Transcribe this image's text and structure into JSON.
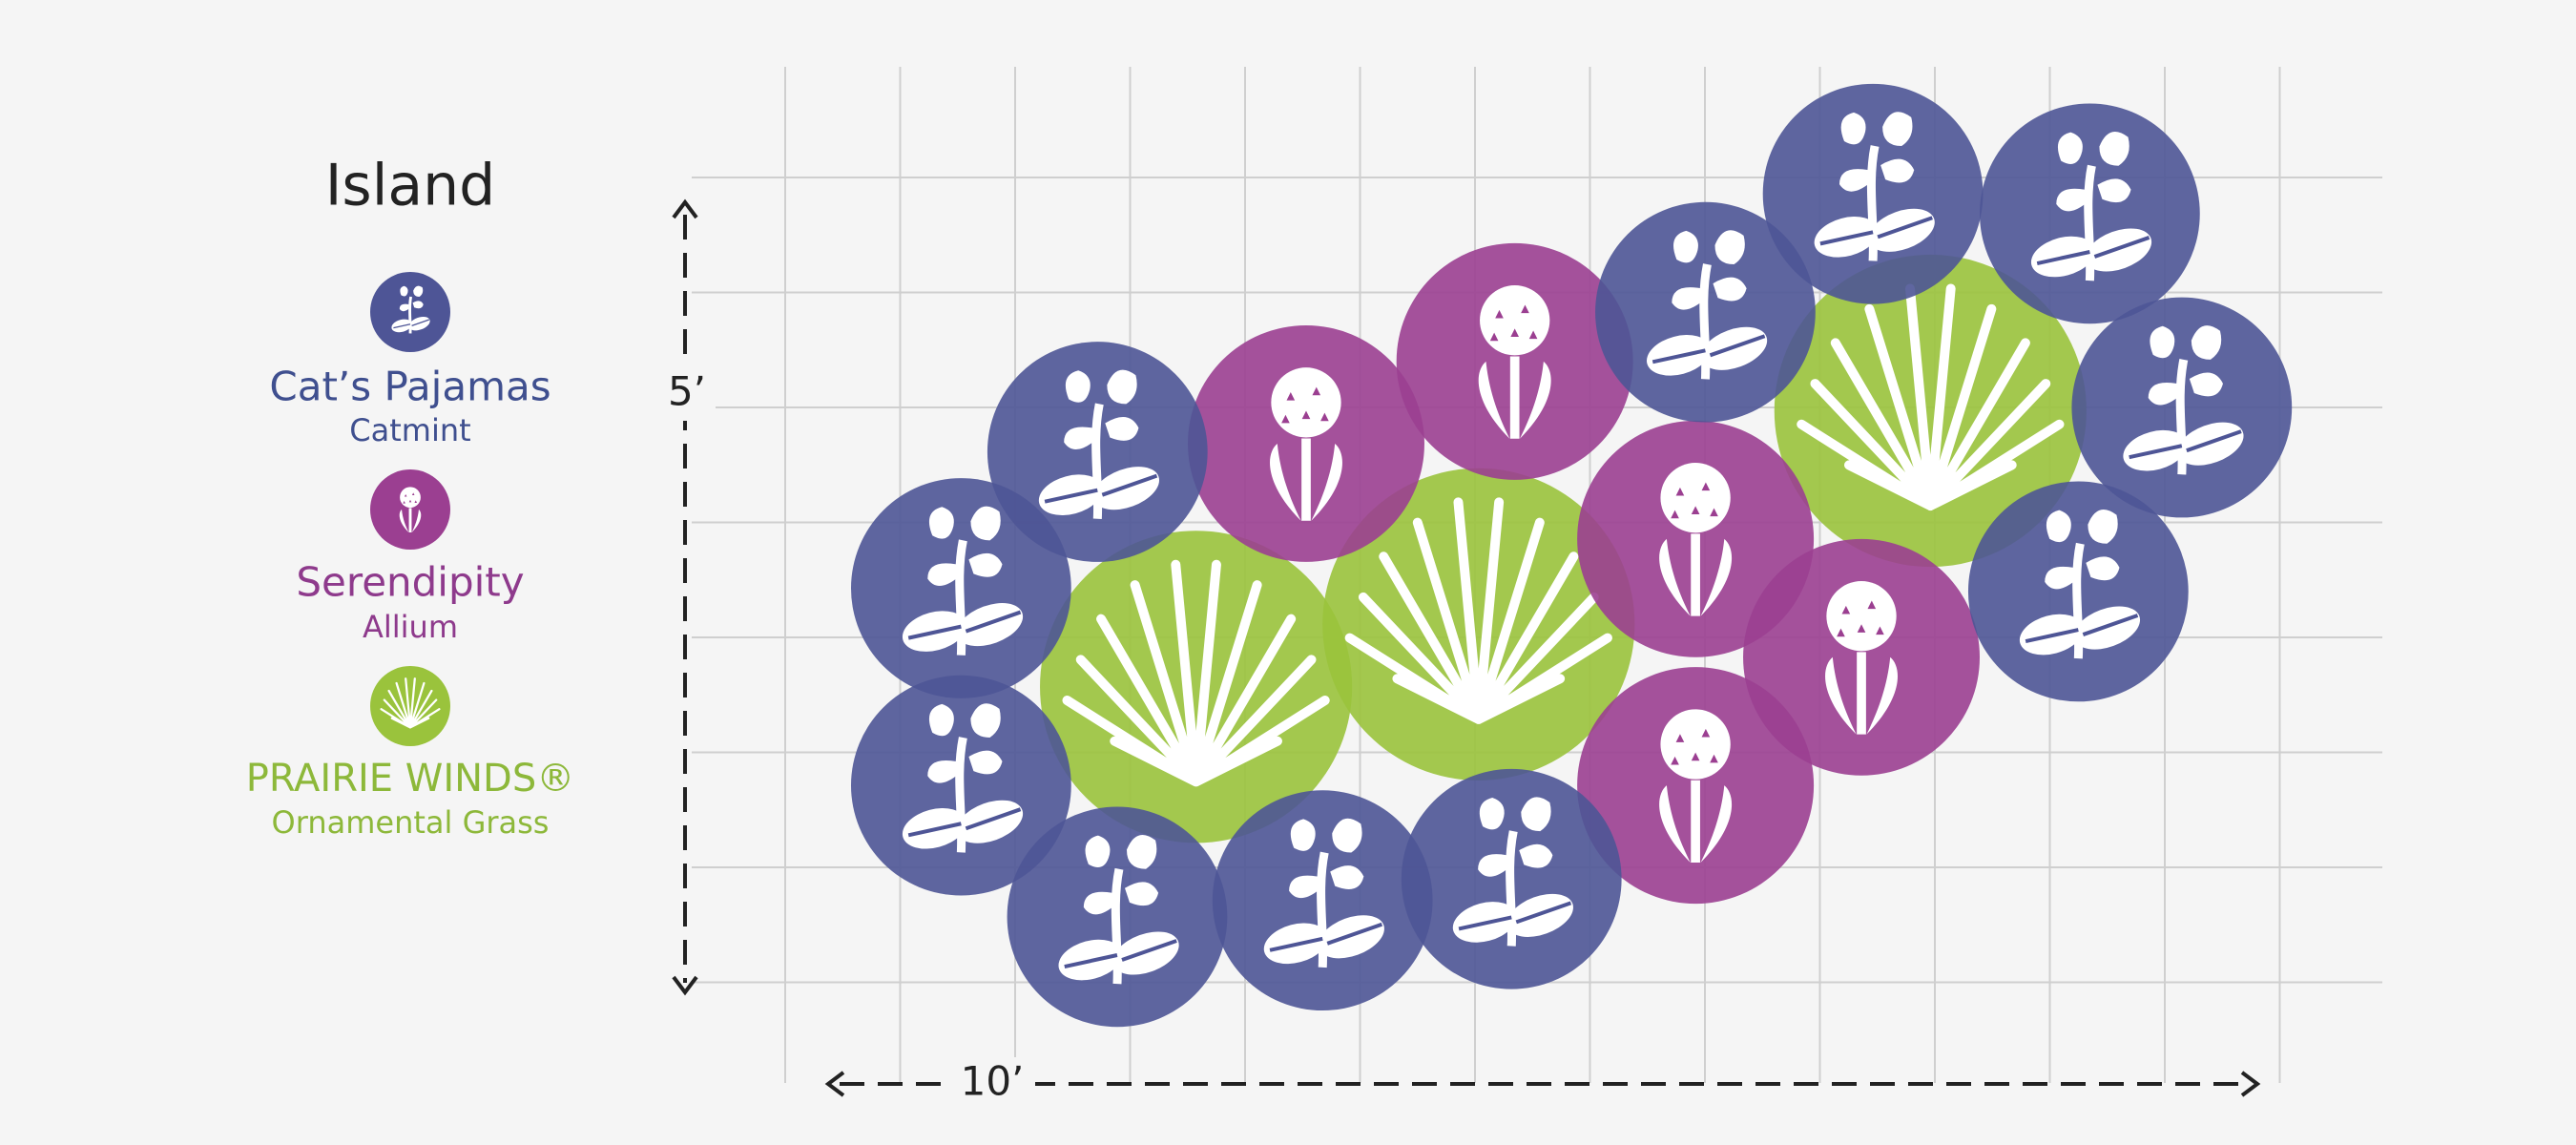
{
  "title": "Island",
  "legend": [
    {
      "name": "Cat’s Pajamas",
      "type": "Catmint"
    },
    {
      "name": "Serendipity",
      "type": "Allium"
    },
    {
      "name": "PRAIRIE WINDS®",
      "type": "Ornamental Grass"
    }
  ],
  "dimensions": {
    "height": "5’",
    "width": "10’"
  }
}
